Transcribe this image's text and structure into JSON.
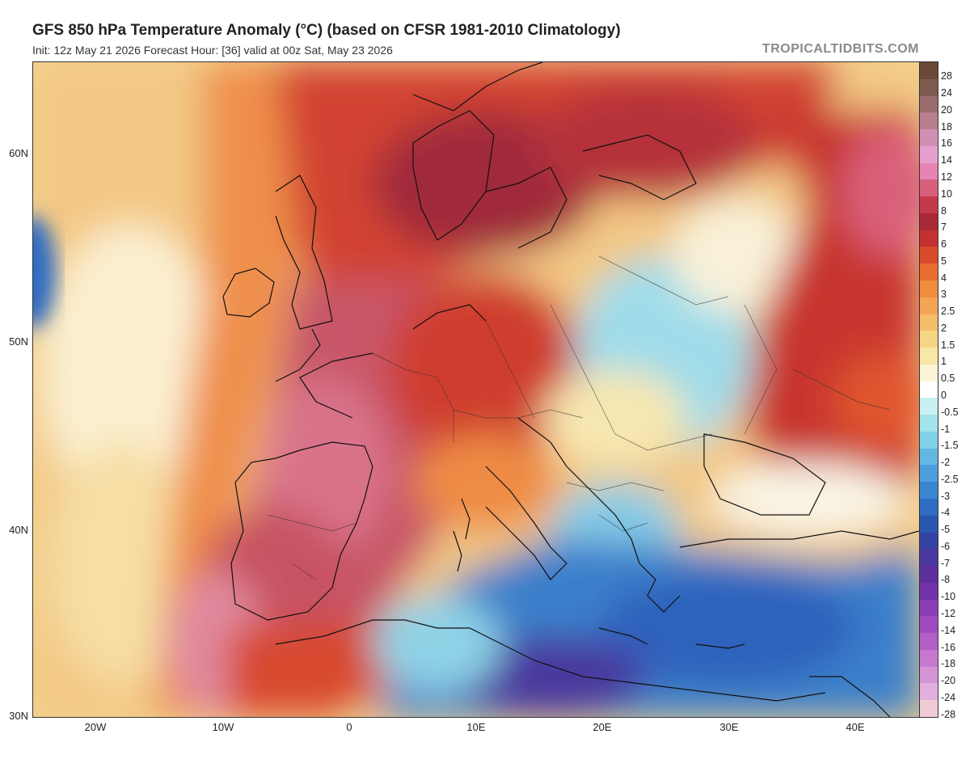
{
  "header": {
    "title": "GFS 850 hPa Temperature Anomaly (°C) (based on CFSR 1981-2010 Climatology)",
    "subtitle": "Init: 12z May 21 2026   Forecast Hour: [36]   valid at 00z Sat, May 23 2026",
    "brand": "TROPICALTIDBITS.COM"
  },
  "map": {
    "lat_labels": [
      "60N",
      "50N",
      "40N",
      "30N"
    ],
    "lon_labels": [
      "20W",
      "10W",
      "0",
      "10E",
      "20E",
      "30E",
      "40E"
    ]
  },
  "colorbar": {
    "labels": [
      "28",
      "24",
      "20",
      "18",
      "16",
      "14",
      "12",
      "10",
      "8",
      "7",
      "6",
      "5",
      "4",
      "3",
      "2.5",
      "2",
      "1.5",
      "1",
      "0.5",
      "0",
      "-0.5",
      "-1",
      "-1.5",
      "-2",
      "-2.5",
      "-3",
      "-4",
      "-5",
      "-6",
      "-7",
      "-8",
      "-10",
      "-12",
      "-14",
      "-16",
      "-18",
      "-20",
      "-24",
      "-28"
    ],
    "colors": [
      "#6b4a3a",
      "#7e5b4e",
      "#9a6b6c",
      "#b77f8e",
      "#d28fb4",
      "#e6a0d0",
      "#e684b3",
      "#d9607a",
      "#c23a4c",
      "#a82a37",
      "#c33131",
      "#dc4a2c",
      "#ea6c2f",
      "#f08c3d",
      "#f3a555",
      "#f5bd6a",
      "#f6d584",
      "#f8e8a6",
      "#fbf4d6",
      "#ffffff",
      "#c8f0f2",
      "#a2e3ec",
      "#80d0e8",
      "#62b8e2",
      "#4c9fda",
      "#3b86cf",
      "#2f6cc2",
      "#2957ad",
      "#3343a3",
      "#4a379e",
      "#5d2f9c",
      "#7333a8",
      "#8a3fb6",
      "#a04cc0",
      "#b35fc6",
      "#c678cf",
      "#d594d6",
      "#e3b0dd",
      "#f0cad6"
    ]
  }
}
